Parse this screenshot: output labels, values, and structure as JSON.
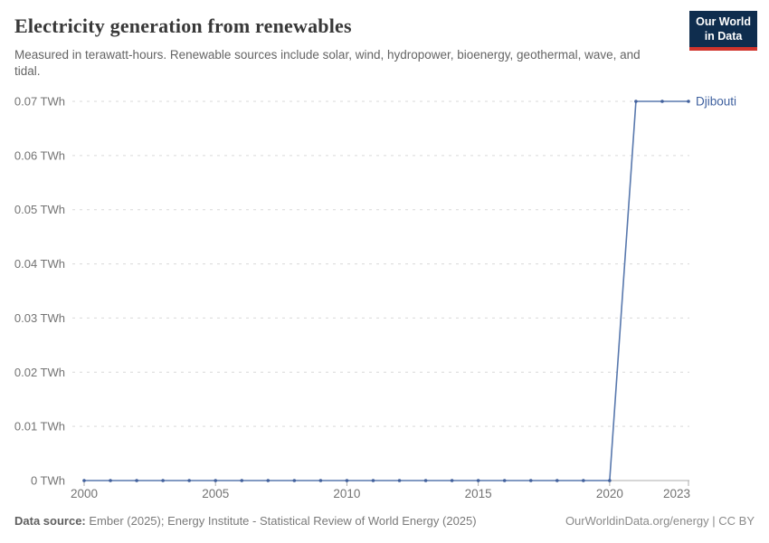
{
  "header": {
    "title": "Electricity generation from renewables",
    "subtitle": "Measured in terawatt-hours. Renewable sources include solar, wind, hydropower, bioenergy, geothermal, wave, and tidal.",
    "logo": {
      "line1": "Our World",
      "line2": "in Data",
      "bg_color": "#0f2d4e",
      "accent_color": "#d0342c"
    }
  },
  "chart_data": {
    "type": "line",
    "title": "Electricity generation from renewables",
    "subtitle": "Measured in terawatt-hours. Renewable sources include solar, wind, hydropower, bioenergy, geothermal, wave, and tidal.",
    "unit": "TWh",
    "entity_label": "Djibouti",
    "x": [
      2000,
      2001,
      2002,
      2003,
      2004,
      2005,
      2006,
      2007,
      2008,
      2009,
      2010,
      2011,
      2012,
      2013,
      2014,
      2015,
      2016,
      2017,
      2018,
      2019,
      2020,
      2021,
      2022,
      2023
    ],
    "series": [
      {
        "name": "Djibouti",
        "values": [
          0,
          0,
          0,
          0,
          0,
          0,
          0,
          0,
          0,
          0,
          0,
          0,
          0,
          0,
          0,
          0,
          0,
          0,
          0,
          0,
          0,
          0.07,
          0.07,
          0.07
        ]
      }
    ],
    "xlabel": "",
    "ylabel": "",
    "xlim": [
      2000,
      2023
    ],
    "ylim": [
      0,
      0.07
    ],
    "xtick_values": [
      2000,
      2005,
      2010,
      2015,
      2020,
      2023
    ],
    "xtick_labels": [
      "2000",
      "2005",
      "2010",
      "2015",
      "2020",
      "2023"
    ],
    "ytick_values": [
      0,
      0.01,
      0.02,
      0.03,
      0.04,
      0.05,
      0.06,
      0.07
    ],
    "ytick_labels": [
      "0 TWh",
      "0.01 TWh",
      "0.02 TWh",
      "0.03 TWh",
      "0.04 TWh",
      "0.05 TWh",
      "0.06 TWh",
      "0.07 TWh"
    ],
    "grid": "horizontal-dashed",
    "legend_position": "right-of-line-end",
    "colors": {
      "line": "#5878ad",
      "marker": "#41609c",
      "entity_label": "#3d5f9e",
      "gridline": "#d9d9d9",
      "axis": "#aeaeae",
      "tick_label": "#737373"
    }
  },
  "footer": {
    "source_label": "Data source:",
    "source_text": "Ember (2025); Energy Institute - Statistical Review of World Energy (2025)",
    "credit": "OurWorldinData.org/energy | CC BY"
  }
}
